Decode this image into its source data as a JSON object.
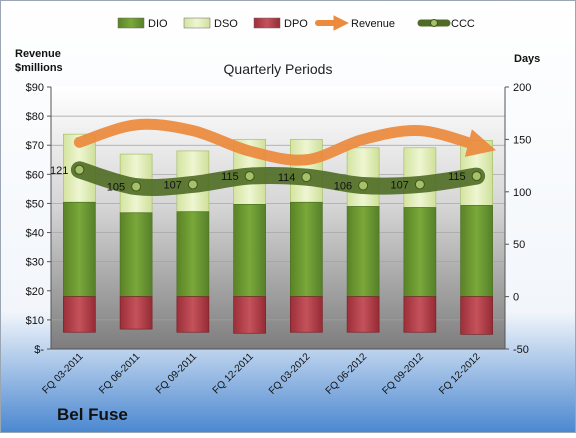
{
  "company": "Bel Fuse",
  "chart_data": {
    "type": "bar",
    "title": "Quarterly Periods",
    "left_axis_title": [
      "Revenue",
      "$millions"
    ],
    "right_axis_title": "Days",
    "categories": [
      "FQ 03-2011",
      "FQ 06-2011",
      "FQ 09-2011",
      "FQ 12-2011",
      "FQ 03-2012",
      "FQ 06-2012",
      "FQ 09-2012",
      "FQ 12-2012"
    ],
    "left_ticks": [
      "$-",
      "$10",
      "$20",
      "$30",
      "$40",
      "$50",
      "$60",
      "$70",
      "$80",
      "$90"
    ],
    "left_ylim": [
      0,
      90
    ],
    "right_ticks": [
      "-50",
      "0",
      "50",
      "100",
      "150",
      "200"
    ],
    "right_ylim": [
      -50,
      200
    ],
    "grid": true,
    "legend_position": "top",
    "series": [
      {
        "name": "DIO",
        "axis": "days",
        "color": "#6f9b2f",
        "values": [
          90,
          80,
          81,
          88,
          90,
          86,
          85,
          87
        ]
      },
      {
        "name": "DSO",
        "axis": "days",
        "color": "#e2efb8",
        "values": [
          65,
          56,
          58,
          62,
          60,
          56,
          57,
          62
        ]
      },
      {
        "name": "DPO",
        "axis": "days",
        "color": "#b8404a",
        "values": [
          -34,
          -31,
          -34,
          -35,
          -34,
          -34,
          -34,
          -36
        ]
      },
      {
        "name": "Revenue",
        "axis": "money",
        "color": "#ec8a3d",
        "values": [
          71,
          77,
          75,
          68,
          65,
          72,
          75,
          70
        ]
      },
      {
        "name": "CCC",
        "axis": "days",
        "color": "#5d7a2d",
        "values": [
          121,
          105,
          107,
          115,
          114,
          106,
          107,
          115
        ]
      }
    ],
    "data_labels": [
      "121",
      "105",
      "107",
      "115",
      "114",
      "106",
      "107",
      "115"
    ]
  }
}
